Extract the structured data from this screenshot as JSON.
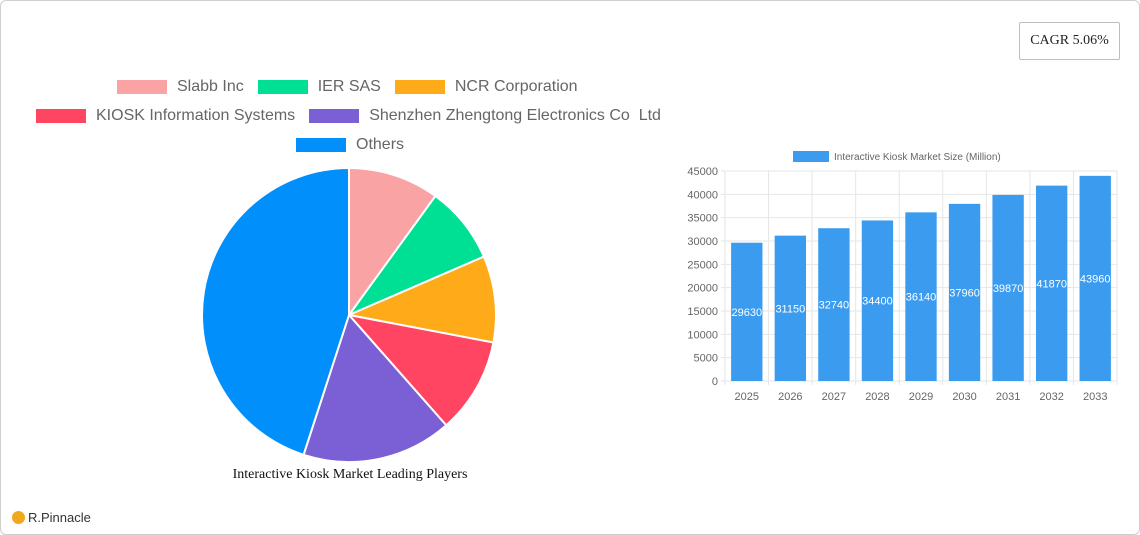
{
  "cagr_label": "CAGR 5.06%",
  "logo_text": "R.Pinnacle",
  "colors": {
    "bar": "#3b9cef",
    "grid": "#e6e6e6",
    "axis_text": "#666666"
  },
  "chart_data": [
    {
      "type": "pie",
      "title": "Interactive Kiosk Market Leading Players",
      "legend_position": "top",
      "slices": [
        {
          "label": "Slabb Inc",
          "value": 10,
          "color": "#f9a3a4"
        },
        {
          "label": "IER SAS",
          "value": 8.5,
          "color": "#00e095"
        },
        {
          "label": "NCR Corporation",
          "value": 9.5,
          "color": "#ffab19"
        },
        {
          "label": "KIOSK Information Systems",
          "value": 10.5,
          "color": "#ff4561"
        },
        {
          "label": "Shenzhen Zhengtong Electronics Co  Ltd",
          "value": 16.5,
          "color": "#7b5fd4"
        },
        {
          "label": "Others",
          "value": 45,
          "color": "#008ffb"
        }
      ]
    },
    {
      "type": "bar",
      "legend_label": "Interactive Kiosk Market Size (Million)",
      "legend_position": "top",
      "categories": [
        "2025",
        "2026",
        "2027",
        "2028",
        "2029",
        "2030",
        "2031",
        "2032",
        "2033"
      ],
      "values": [
        29630,
        31150,
        32740,
        34400,
        36140,
        37960,
        39870,
        41870,
        43960
      ],
      "ylim": [
        0,
        45000
      ],
      "yticks": [
        0,
        5000,
        10000,
        15000,
        20000,
        25000,
        30000,
        35000,
        40000,
        45000
      ],
      "grid": true
    }
  ]
}
